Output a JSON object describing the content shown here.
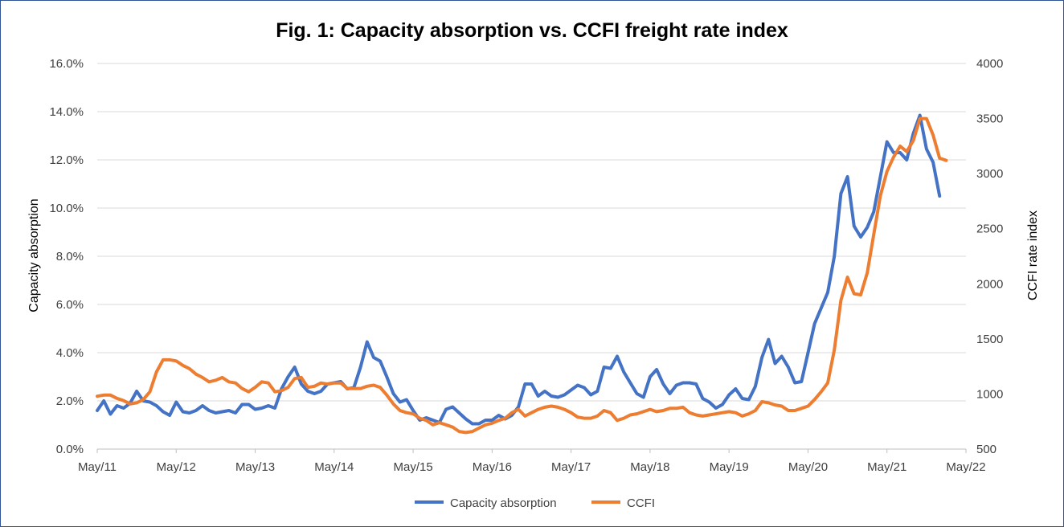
{
  "chart_data": {
    "type": "line",
    "title": "Fig. 1: Capacity absorption vs. CCFI freight rate index",
    "x_tick_labels": [
      "May/11",
      "May/12",
      "May/13",
      "May/14",
      "May/15",
      "May/16",
      "May/17",
      "May/18",
      "May/19",
      "May/20",
      "May/21",
      "May/22"
    ],
    "y_left": {
      "label": "Capacity absorption",
      "range": [
        0,
        16
      ],
      "tick_labels": [
        "0.0%",
        "2.0%",
        "4.0%",
        "6.0%",
        "8.0%",
        "10.0%",
        "12.0%",
        "14.0%",
        "16.0%"
      ]
    },
    "y_right": {
      "label": "CCFI rate index",
      "range": [
        500,
        4000
      ],
      "tick_labels": [
        "500",
        "1000",
        "1500",
        "2000",
        "2500",
        "3000",
        "3500",
        "4000"
      ]
    },
    "gridlines": "horizontal",
    "legend_position": "bottom",
    "series": [
      {
        "name": "Capacity absorption",
        "axis": "left",
        "color": "#4472c4",
        "unit": "%",
        "points": [
          [
            "2011-05",
            1.6
          ],
          [
            "2011-06",
            2.0
          ],
          [
            "2011-07",
            1.45
          ],
          [
            "2011-08",
            1.8
          ],
          [
            "2011-09",
            1.7
          ],
          [
            "2011-10",
            1.9
          ],
          [
            "2011-11",
            2.4
          ],
          [
            "2011-12",
            2.0
          ],
          [
            "2012-01",
            1.95
          ],
          [
            "2012-02",
            1.8
          ],
          [
            "2012-03",
            1.55
          ],
          [
            "2012-04",
            1.4
          ],
          [
            "2012-05",
            1.95
          ],
          [
            "2012-06",
            1.55
          ],
          [
            "2012-07",
            1.5
          ],
          [
            "2012-08",
            1.6
          ],
          [
            "2012-09",
            1.8
          ],
          [
            "2012-10",
            1.6
          ],
          [
            "2012-11",
            1.5
          ],
          [
            "2012-12",
            1.55
          ],
          [
            "2013-01",
            1.6
          ],
          [
            "2013-02",
            1.5
          ],
          [
            "2013-03",
            1.85
          ],
          [
            "2013-04",
            1.85
          ],
          [
            "2013-05",
            1.65
          ],
          [
            "2013-06",
            1.7
          ],
          [
            "2013-07",
            1.8
          ],
          [
            "2013-08",
            1.7
          ],
          [
            "2013-09",
            2.5
          ],
          [
            "2013-10",
            3.0
          ],
          [
            "2013-11",
            3.4
          ],
          [
            "2013-12",
            2.7
          ],
          [
            "2014-01",
            2.4
          ],
          [
            "2014-02",
            2.3
          ],
          [
            "2014-03",
            2.4
          ],
          [
            "2014-04",
            2.7
          ],
          [
            "2014-05",
            2.75
          ],
          [
            "2014-06",
            2.8
          ],
          [
            "2014-07",
            2.5
          ],
          [
            "2014-08",
            2.55
          ],
          [
            "2014-09",
            3.4
          ],
          [
            "2014-10",
            4.45
          ],
          [
            "2014-11",
            3.8
          ],
          [
            "2014-12",
            3.65
          ],
          [
            "2015-01",
            3.0
          ],
          [
            "2015-02",
            2.3
          ],
          [
            "2015-03",
            1.95
          ],
          [
            "2015-04",
            2.05
          ],
          [
            "2015-05",
            1.6
          ],
          [
            "2015-06",
            1.2
          ],
          [
            "2015-07",
            1.3
          ],
          [
            "2015-08",
            1.2
          ],
          [
            "2015-09",
            1.1
          ],
          [
            "2015-10",
            1.65
          ],
          [
            "2015-11",
            1.75
          ],
          [
            "2015-12",
            1.5
          ],
          [
            "2016-01",
            1.25
          ],
          [
            "2016-02",
            1.05
          ],
          [
            "2016-03",
            1.05
          ],
          [
            "2016-04",
            1.2
          ],
          [
            "2016-05",
            1.2
          ],
          [
            "2016-06",
            1.4
          ],
          [
            "2016-07",
            1.25
          ],
          [
            "2016-08",
            1.4
          ],
          [
            "2016-09",
            1.75
          ],
          [
            "2016-10",
            2.7
          ],
          [
            "2016-11",
            2.7
          ],
          [
            "2016-12",
            2.2
          ],
          [
            "2017-01",
            2.4
          ],
          [
            "2017-02",
            2.2
          ],
          [
            "2017-03",
            2.15
          ],
          [
            "2017-04",
            2.25
          ],
          [
            "2017-05",
            2.45
          ],
          [
            "2017-06",
            2.65
          ],
          [
            "2017-07",
            2.55
          ],
          [
            "2017-08",
            2.25
          ],
          [
            "2017-09",
            2.4
          ],
          [
            "2017-10",
            3.4
          ],
          [
            "2017-11",
            3.35
          ],
          [
            "2017-12",
            3.85
          ],
          [
            "2018-01",
            3.2
          ],
          [
            "2018-02",
            2.75
          ],
          [
            "2018-03",
            2.3
          ],
          [
            "2018-04",
            2.15
          ],
          [
            "2018-05",
            3.0
          ],
          [
            "2018-06",
            3.3
          ],
          [
            "2018-07",
            2.7
          ],
          [
            "2018-08",
            2.3
          ],
          [
            "2018-09",
            2.65
          ],
          [
            "2018-10",
            2.75
          ],
          [
            "2018-11",
            2.75
          ],
          [
            "2018-12",
            2.7
          ],
          [
            "2019-01",
            2.1
          ],
          [
            "2019-02",
            1.95
          ],
          [
            "2019-03",
            1.7
          ],
          [
            "2019-04",
            1.85
          ],
          [
            "2019-05",
            2.25
          ],
          [
            "2019-06",
            2.5
          ],
          [
            "2019-07",
            2.1
          ],
          [
            "2019-08",
            2.05
          ],
          [
            "2019-09",
            2.6
          ],
          [
            "2019-10",
            3.8
          ],
          [
            "2019-11",
            4.55
          ],
          [
            "2019-12",
            3.55
          ],
          [
            "2020-01",
            3.85
          ],
          [
            "2020-02",
            3.4
          ],
          [
            "2020-03",
            2.75
          ],
          [
            "2020-04",
            2.8
          ],
          [
            "2020-05",
            4.0
          ],
          [
            "2020-06",
            5.2
          ],
          [
            "2020-07",
            5.85
          ],
          [
            "2020-08",
            6.5
          ],
          [
            "2020-09",
            8.0
          ],
          [
            "2020-10",
            10.6
          ],
          [
            "2020-11",
            11.3
          ],
          [
            "2020-12",
            9.25
          ],
          [
            "2021-01",
            8.8
          ],
          [
            "2021-02",
            9.2
          ],
          [
            "2021-03",
            9.85
          ],
          [
            "2021-04",
            11.3
          ],
          [
            "2021-05",
            12.75
          ],
          [
            "2021-06",
            12.3
          ],
          [
            "2021-07",
            12.3
          ],
          [
            "2021-08",
            12.0
          ],
          [
            "2021-09",
            13.1
          ],
          [
            "2021-10",
            13.85
          ],
          [
            "2021-11",
            12.45
          ],
          [
            "2021-12",
            11.9
          ],
          [
            "2022-01",
            10.5
          ]
        ]
      },
      {
        "name": "CCFI",
        "axis": "right",
        "color": "#ed7d31",
        "unit": "index",
        "points": [
          [
            "2011-05",
            980
          ],
          [
            "2011-06",
            990
          ],
          [
            "2011-07",
            990
          ],
          [
            "2011-08",
            960
          ],
          [
            "2011-09",
            940
          ],
          [
            "2011-10",
            910
          ],
          [
            "2011-11",
            920
          ],
          [
            "2011-12",
            950
          ],
          [
            "2012-01",
            1020
          ],
          [
            "2012-02",
            1200
          ],
          [
            "2012-03",
            1310
          ],
          [
            "2012-04",
            1310
          ],
          [
            "2012-05",
            1300
          ],
          [
            "2012-06",
            1260
          ],
          [
            "2012-07",
            1230
          ],
          [
            "2012-08",
            1180
          ],
          [
            "2012-09",
            1150
          ],
          [
            "2012-10",
            1110
          ],
          [
            "2012-11",
            1125
          ],
          [
            "2012-12",
            1150
          ],
          [
            "2013-01",
            1110
          ],
          [
            "2013-02",
            1100
          ],
          [
            "2013-03",
            1050
          ],
          [
            "2013-04",
            1020
          ],
          [
            "2013-05",
            1060
          ],
          [
            "2013-06",
            1110
          ],
          [
            "2013-07",
            1100
          ],
          [
            "2013-08",
            1020
          ],
          [
            "2013-09",
            1030
          ],
          [
            "2013-10",
            1060
          ],
          [
            "2013-11",
            1140
          ],
          [
            "2013-12",
            1150
          ],
          [
            "2014-01",
            1060
          ],
          [
            "2014-02",
            1070
          ],
          [
            "2014-03",
            1100
          ],
          [
            "2014-04",
            1090
          ],
          [
            "2014-05",
            1100
          ],
          [
            "2014-06",
            1100
          ],
          [
            "2014-07",
            1050
          ],
          [
            "2014-08",
            1050
          ],
          [
            "2014-09",
            1050
          ],
          [
            "2014-10",
            1070
          ],
          [
            "2014-11",
            1080
          ],
          [
            "2014-12",
            1060
          ],
          [
            "2015-01",
            990
          ],
          [
            "2015-02",
            910
          ],
          [
            "2015-03",
            850
          ],
          [
            "2015-04",
            830
          ],
          [
            "2015-05",
            820
          ],
          [
            "2015-06",
            780
          ],
          [
            "2015-07",
            760
          ],
          [
            "2015-08",
            720
          ],
          [
            "2015-09",
            740
          ],
          [
            "2015-10",
            720
          ],
          [
            "2015-11",
            700
          ],
          [
            "2015-12",
            660
          ],
          [
            "2016-01",
            650
          ],
          [
            "2016-02",
            660
          ],
          [
            "2016-03",
            690
          ],
          [
            "2016-04",
            720
          ],
          [
            "2016-05",
            735
          ],
          [
            "2016-06",
            760
          ],
          [
            "2016-07",
            780
          ],
          [
            "2016-08",
            830
          ],
          [
            "2016-09",
            860
          ],
          [
            "2016-10",
            800
          ],
          [
            "2016-11",
            830
          ],
          [
            "2016-12",
            860
          ],
          [
            "2017-01",
            880
          ],
          [
            "2017-02",
            890
          ],
          [
            "2017-03",
            880
          ],
          [
            "2017-04",
            860
          ],
          [
            "2017-05",
            830
          ],
          [
            "2017-06",
            790
          ],
          [
            "2017-07",
            780
          ],
          [
            "2017-08",
            780
          ],
          [
            "2017-09",
            800
          ],
          [
            "2017-10",
            850
          ],
          [
            "2017-11",
            830
          ],
          [
            "2017-12",
            760
          ],
          [
            "2018-01",
            780
          ],
          [
            "2018-02",
            810
          ],
          [
            "2018-03",
            820
          ],
          [
            "2018-04",
            840
          ],
          [
            "2018-05",
            860
          ],
          [
            "2018-06",
            840
          ],
          [
            "2018-07",
            850
          ],
          [
            "2018-08",
            870
          ],
          [
            "2018-09",
            870
          ],
          [
            "2018-10",
            880
          ],
          [
            "2018-11",
            830
          ],
          [
            "2018-12",
            810
          ],
          [
            "2019-01",
            800
          ],
          [
            "2019-02",
            810
          ],
          [
            "2019-03",
            820
          ],
          [
            "2019-04",
            830
          ],
          [
            "2019-05",
            840
          ],
          [
            "2019-06",
            830
          ],
          [
            "2019-07",
            800
          ],
          [
            "2019-08",
            820
          ],
          [
            "2019-09",
            850
          ],
          [
            "2019-10",
            930
          ],
          [
            "2019-11",
            920
          ],
          [
            "2019-12",
            900
          ],
          [
            "2020-01",
            890
          ],
          [
            "2020-02",
            850
          ],
          [
            "2020-03",
            850
          ],
          [
            "2020-04",
            870
          ],
          [
            "2020-05",
            890
          ],
          [
            "2020-06",
            950
          ],
          [
            "2020-07",
            1020
          ],
          [
            "2020-08",
            1100
          ],
          [
            "2020-09",
            1400
          ],
          [
            "2020-10",
            1850
          ],
          [
            "2020-11",
            2060
          ],
          [
            "2020-12",
            1910
          ],
          [
            "2021-01",
            1900
          ],
          [
            "2021-02",
            2100
          ],
          [
            "2021-03",
            2450
          ],
          [
            "2021-04",
            2800
          ],
          [
            "2021-05",
            3020
          ],
          [
            "2021-06",
            3150
          ],
          [
            "2021-07",
            3250
          ],
          [
            "2021-08",
            3200
          ],
          [
            "2021-09",
            3300
          ],
          [
            "2021-10",
            3500
          ],
          [
            "2021-11",
            3500
          ],
          [
            "2021-12",
            3350
          ],
          [
            "2022-01",
            3140
          ],
          [
            "2022-02",
            3120
          ]
        ]
      }
    ]
  }
}
